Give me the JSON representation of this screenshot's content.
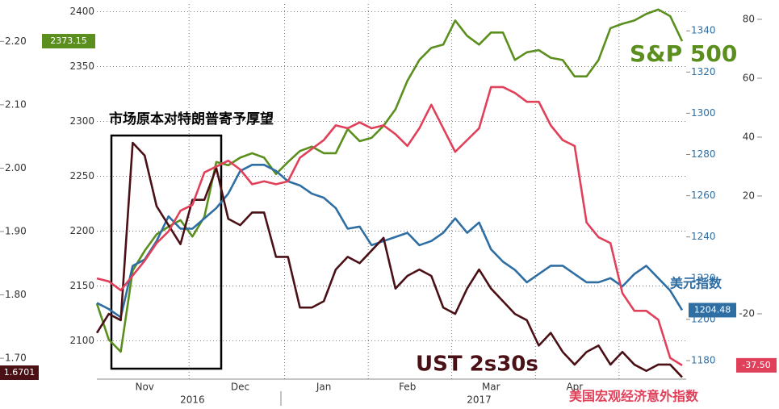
{
  "chart_data": {
    "type": "line",
    "annotation": "市场原本对特朗普寄予厚望",
    "categories": [
      null,
      null,
      null,
      null,
      "Nov",
      null,
      null,
      null,
      null,
      null,
      null,
      null,
      "Dec",
      null,
      null,
      null,
      null,
      null,
      null,
      "Jan",
      null,
      null,
      null,
      null,
      null,
      null,
      "Feb",
      null,
      null,
      null,
      null,
      null,
      null,
      "Mar",
      null,
      null,
      null,
      null,
      null,
      null,
      "Apr",
      null,
      null,
      null,
      null,
      null,
      null,
      null,
      null,
      null
    ],
    "year_categories": [
      null,
      null,
      null,
      null,
      null,
      null,
      null,
      null,
      "2016",
      null,
      null,
      null,
      null,
      null,
      null,
      null,
      null,
      null,
      null,
      null,
      null,
      null,
      null,
      null,
      null,
      null,
      null,
      null,
      null,
      null,
      null,
      null,
      "2017",
      null,
      null,
      null,
      null,
      null,
      null,
      null,
      null,
      null,
      null,
      null,
      null,
      null,
      null,
      null,
      null,
      null
    ],
    "ylim": [
      2065,
      2407
    ],
    "yticks": [
      2100,
      2150,
      2200,
      2250,
      2300,
      2350,
      2400
    ],
    "y2lim": [
      1171,
      1353
    ],
    "y2ticks": [
      1180,
      1200,
      1220,
      1240,
      1260,
      1280,
      1300,
      1320,
      1340
    ],
    "y3lim": [
      1.667,
      2.259
    ],
    "y3ticks": [
      {
        "value": 1.7,
        "label": "1.70"
      },
      {
        "value": 1.8,
        "label": "1.80"
      },
      {
        "value": 1.9,
        "label": "1.90"
      },
      {
        "value": 2.0,
        "label": "2.00"
      },
      {
        "value": 2.1,
        "label": "2.10"
      },
      {
        "value": 2.2,
        "label": "2.20"
      }
    ],
    "y4lim": [
      -42.2,
      85.2
    ],
    "y4ticks": [
      -20,
      20,
      40,
      60,
      80
    ],
    "grid": true,
    "series": [
      {
        "name": "S&P 500",
        "color": "#5a8f1e",
        "axis": "y",
        "last_label": "2373.15",
        "values": [
          2134,
          2101,
          2090,
          2164,
          2182,
          2197,
          2204,
          2210,
          2195,
          2213,
          2263,
          2260,
          2267,
          2271,
          2267,
          2252,
          2263,
          2273,
          2277,
          2271,
          2271,
          2293,
          2282,
          2285,
          2296,
          2311,
          2337,
          2356,
          2367,
          2370,
          2392,
          2378,
          2370,
          2381,
          2381,
          2356,
          2363,
          2365,
          2358,
          2356,
          2341,
          2341,
          2356,
          2385,
          2389,
          2392,
          2398,
          2402,
          2396,
          2373.15
        ]
      },
      {
        "name": "美元指数",
        "color": "#2e6ea3",
        "axis": "y2",
        "last_label": "1204.48",
        "values": [
          1208,
          1205,
          1201,
          1226,
          1229,
          1238,
          1250,
          1244,
          1244,
          1249,
          1254,
          1261,
          1272,
          1275,
          1275,
          1272,
          1267,
          1265,
          1261,
          1259,
          1254,
          1244,
          1245,
          1236,
          1238,
          1240,
          1242,
          1236,
          1238,
          1242,
          1249,
          1242,
          1247,
          1234,
          1228,
          1224,
          1218,
          1222,
          1226,
          1226,
          1222,
          1218,
          1218,
          1220,
          1216,
          1222,
          1226,
          1220,
          1214,
          1204.48
        ]
      },
      {
        "name": "UST 2s30s",
        "color": "#4a1016",
        "axis": "y3",
        "last_label": "1.6701",
        "values": [
          1.74,
          1.77,
          1.76,
          2.04,
          2.02,
          1.94,
          1.91,
          1.88,
          1.95,
          1.95,
          2.0,
          1.92,
          1.91,
          1.93,
          1.93,
          1.86,
          1.86,
          1.78,
          1.78,
          1.79,
          1.84,
          1.86,
          1.85,
          1.87,
          1.89,
          1.81,
          1.83,
          1.84,
          1.83,
          1.78,
          1.77,
          1.81,
          1.84,
          1.81,
          1.79,
          1.77,
          1.76,
          1.72,
          1.74,
          1.71,
          1.69,
          1.71,
          1.72,
          1.69,
          1.71,
          1.69,
          1.68,
          1.69,
          1.69,
          1.6701
        ]
      },
      {
        "name": "美国宏观经济意外指数",
        "color": "#e0405a",
        "axis": "y4",
        "last_label": "-37.50",
        "values": [
          -8,
          -9,
          -12,
          -7,
          -2,
          4,
          8,
          15,
          17,
          28,
          30,
          32,
          29,
          24,
          25,
          24,
          25,
          33,
          36,
          39,
          44,
          43,
          45,
          43,
          44,
          41,
          37,
          43,
          51,
          43,
          35,
          39,
          43,
          57,
          57,
          55,
          52,
          52,
          44,
          39,
          37,
          11,
          6,
          4,
          -13,
          -19,
          -19,
          -22,
          -35,
          -37.5
        ]
      }
    ]
  }
}
